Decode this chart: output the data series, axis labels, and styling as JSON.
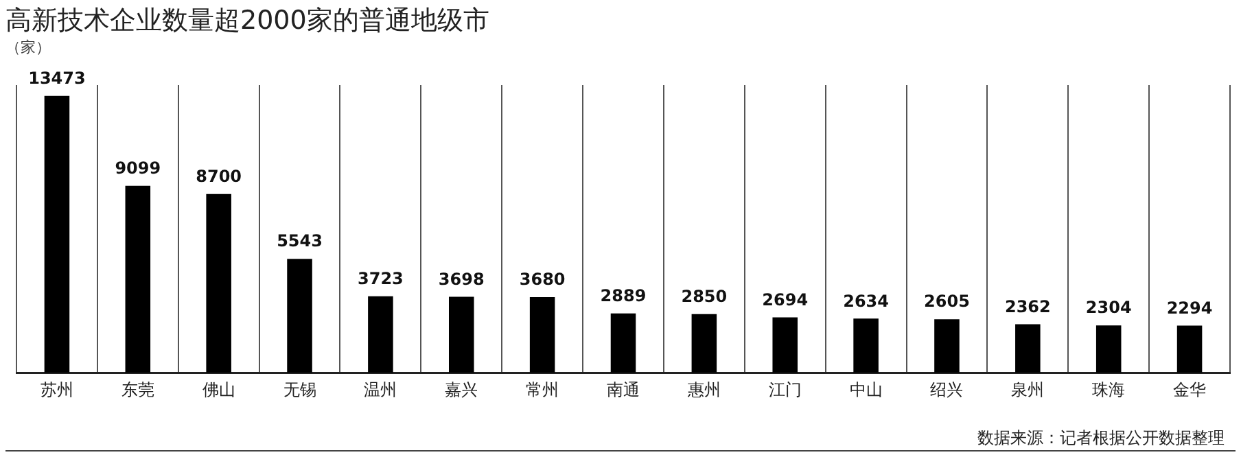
{
  "chart_data": {
    "type": "bar",
    "title": "高新技术企业数量超2000家的普通地级市",
    "ylabel": "（家）",
    "categories": [
      "苏州",
      "东莞",
      "佛山",
      "无锡",
      "温州",
      "嘉兴",
      "常州",
      "南通",
      "惠州",
      "江门",
      "中山",
      "绍兴",
      "泉州",
      "珠海",
      "金华"
    ],
    "values": [
      13473,
      9099,
      8700,
      5543,
      3723,
      3698,
      3680,
      2889,
      2850,
      2694,
      2634,
      2605,
      2362,
      2304,
      2294
    ],
    "color": "#000000",
    "data_labels": true,
    "grid": "x",
    "legend": false,
    "annotations": [
      "数据来源：记者根据公开数据整理"
    ]
  }
}
